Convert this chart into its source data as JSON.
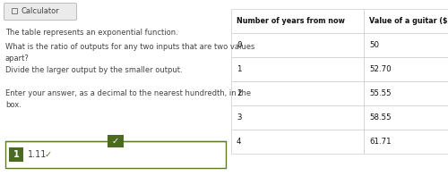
{
  "calculator_label": "Calculator",
  "text1": "The table represents an exponential function.",
  "text2": "What is the ratio of outputs for any two inputs that are two values\napart?",
  "text3": "Divide the larger output by the smaller output.",
  "text4": "Enter your answer, as a decimal to the nearest hundredth, in the\nbox.",
  "table_headers": [
    "Number of years from now",
    "Value of a guitar ($)"
  ],
  "table_rows": [
    [
      "0",
      "50"
    ],
    [
      "1",
      "52.70"
    ],
    [
      "2",
      "55.55"
    ],
    [
      "3",
      "58.55"
    ],
    [
      "4",
      "61.71"
    ]
  ],
  "answer_number": "1",
  "answer_value": "1.11",
  "bg_color": "#ffffff",
  "table_border_color": "#cccccc",
  "answer_box_border": "#5a7a2e",
  "answer_num_bg": "#4a6b20",
  "checkmark_bg": "#4a6b20",
  "text_color": "#444444",
  "header_text_color": "#111111",
  "calc_border_color": "#bbbbbb",
  "calc_bg": "#ebebeb",
  "calc_icon_color": "#666666"
}
